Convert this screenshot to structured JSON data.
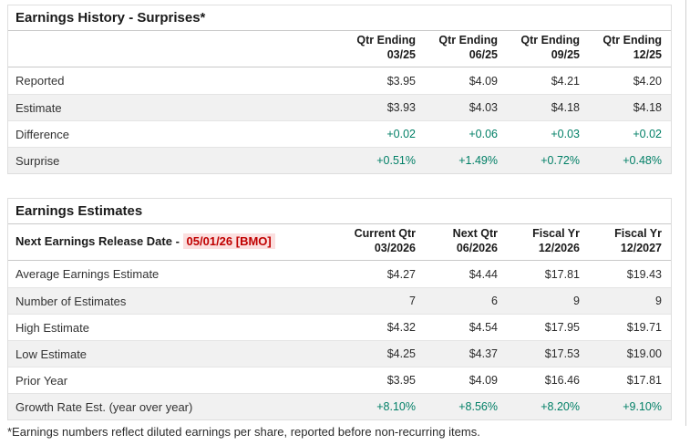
{
  "colors": {
    "green": "#007f66",
    "red": "#c00000",
    "red_bg": "#fbdfdf",
    "row_alt": "#f1f1f1"
  },
  "earnings_history": {
    "title": "Earnings History - Surprises*",
    "columns": [
      {
        "line1": "Qtr Ending",
        "line2": "03/25"
      },
      {
        "line1": "Qtr Ending",
        "line2": "06/25"
      },
      {
        "line1": "Qtr Ending",
        "line2": "09/25"
      },
      {
        "line1": "Qtr Ending",
        "line2": "12/25"
      }
    ],
    "rows": [
      {
        "label": "Reported",
        "values": [
          "$3.95",
          "$4.09",
          "$4.21",
          "$4.20"
        ]
      },
      {
        "label": "Estimate",
        "values": [
          "$3.93",
          "$4.03",
          "$4.18",
          "$4.18"
        ]
      },
      {
        "label": "Difference",
        "values": [
          "+0.02",
          "+0.06",
          "+0.03",
          "+0.02"
        ]
      },
      {
        "label": "Surprise",
        "values": [
          "+0.51%",
          "+1.49%",
          "+0.72%",
          "+0.48%"
        ]
      }
    ]
  },
  "earnings_estimates": {
    "title": "Earnings Estimates",
    "release_label": "Next Earnings Release Date - ",
    "release_date": "05/01/26 [BMO]",
    "columns": [
      {
        "line1": "Current Qtr",
        "line2": "03/2026"
      },
      {
        "line1": "Next Qtr",
        "line2": "06/2026"
      },
      {
        "line1": "Fiscal Yr",
        "line2": "12/2026"
      },
      {
        "line1": "Fiscal Yr",
        "line2": "12/2027"
      }
    ],
    "rows": [
      {
        "label": "Average Earnings Estimate",
        "values": [
          "$4.27",
          "$4.44",
          "$17.81",
          "$19.43"
        ]
      },
      {
        "label": "Number of Estimates",
        "values": [
          "7",
          "6",
          "9",
          "9"
        ]
      },
      {
        "label": "High Estimate",
        "values": [
          "$4.32",
          "$4.54",
          "$17.95",
          "$19.71"
        ]
      },
      {
        "label": "Low Estimate",
        "values": [
          "$4.25",
          "$4.37",
          "$17.53",
          "$19.00"
        ]
      },
      {
        "label": "Prior Year",
        "values": [
          "$3.95",
          "$4.09",
          "$16.46",
          "$17.81"
        ]
      },
      {
        "label": "Growth Rate Est. (year over year)",
        "values": [
          "+8.10%",
          "+8.56%",
          "+8.20%",
          "+9.10%"
        ]
      }
    ]
  },
  "footnote": "*Earnings numbers reflect diluted earnings per share, reported before non-recurring items."
}
